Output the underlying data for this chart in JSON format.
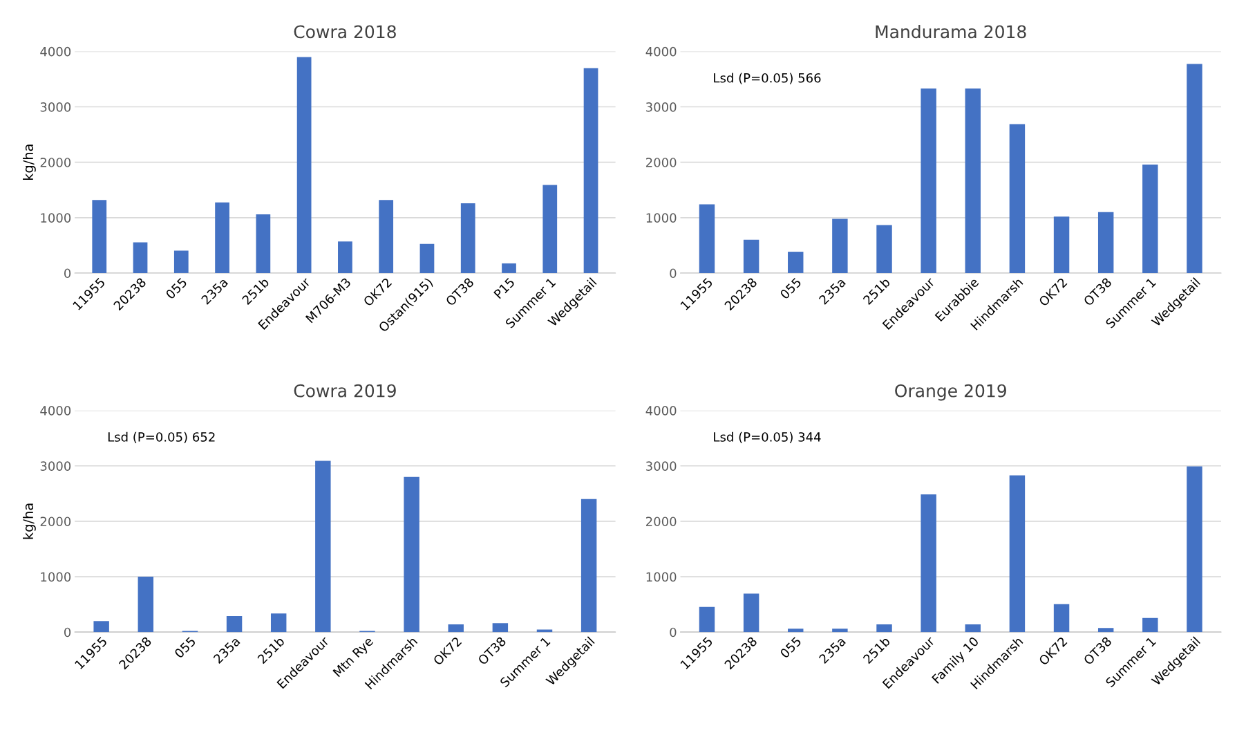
{
  "chart_data": [
    {
      "type": "bar",
      "title": "Cowra 2018",
      "ylabel": "kg/ha",
      "categories": [
        "11955",
        "20238",
        "055",
        "235a",
        "251b",
        "Endeavour",
        "M706-M3",
        "OK72",
        "Ostan(915)",
        "OT38",
        "P15",
        "Summer 1",
        "Wedgetail"
      ],
      "values": [
        1320,
        555,
        405,
        1275,
        1060,
        3900,
        570,
        1320,
        525,
        1260,
        175,
        1590,
        3700
      ],
      "color": "#4472c4",
      "ylim": [
        0,
        4000
      ],
      "yticks": [
        0,
        1000,
        2000,
        3000,
        4000
      ],
      "grid": "y"
    },
    {
      "type": "bar",
      "title": "Mandurama 2018",
      "categories": [
        "11955",
        "20238",
        "055",
        "235a",
        "251b",
        "Endeavour",
        "Eurabbie",
        "Hindmarsh",
        "OK72",
        "OT38",
        "Summer 1",
        "Wedgetail"
      ],
      "values": [
        1240,
        600,
        385,
        980,
        865,
        3330,
        3330,
        2690,
        1020,
        1100,
        1960,
        3775
      ],
      "color": "#4472c4",
      "ylim": [
        0,
        4000
      ],
      "yticks": [
        0,
        1000,
        2000,
        3000,
        4000
      ],
      "grid": "y",
      "annotations": [
        "Lsd (P=0.05) 566"
      ]
    },
    {
      "type": "bar",
      "title": "Cowra 2019",
      "ylabel": "kg/ha",
      "categories": [
        "11955",
        "20238",
        "055",
        "235a",
        "251b",
        "Endeavour",
        "Mtn Rye",
        "Hindmarsh",
        "OK72",
        "OT38",
        "Summer 1",
        "Wedgetail"
      ],
      "values": [
        200,
        1000,
        20,
        290,
        335,
        3090,
        20,
        2800,
        140,
        160,
        45,
        2400
      ],
      "color": "#4472c4",
      "ylim": [
        0,
        4000
      ],
      "yticks": [
        0,
        1000,
        2000,
        3000,
        4000
      ],
      "grid": "y",
      "annotations": [
        "Lsd (P=0.05) 652"
      ]
    },
    {
      "type": "bar",
      "title": "Orange 2019",
      "categories": [
        "11955",
        "20238",
        "055",
        "235a",
        "251b",
        "Endeavour",
        "Family 10",
        "Hindmarsh",
        "OK72",
        "OT38",
        "Summer 1",
        "Wedgetail"
      ],
      "values": [
        455,
        695,
        60,
        60,
        140,
        2485,
        140,
        2830,
        505,
        75,
        255,
        2990
      ],
      "color": "#4472c4",
      "ylim": [
        0,
        4000
      ],
      "yticks": [
        0,
        1000,
        2000,
        3000,
        4000
      ],
      "grid": "y",
      "annotations": [
        "Lsd (P=0.05) 344"
      ]
    }
  ]
}
